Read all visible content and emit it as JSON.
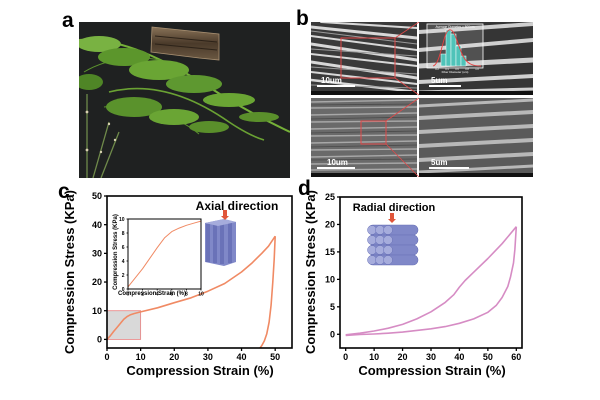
{
  "panels": {
    "a": {
      "label": "a"
    },
    "b": {
      "label": "b",
      "scale_bars": [
        "10um",
        "5um",
        "10um",
        "5um"
      ],
      "histogram_inset": {
        "title": "Average Diameter = 500nm",
        "xlabel": "Fiber Diameter (um)",
        "ylabel": "Distribution",
        "xticks": [
          "0.2",
          "0.4",
          "0.6",
          "0.8",
          "1.0"
        ]
      }
    },
    "c": {
      "label": "c",
      "annotation": "Axial direction"
    },
    "d": {
      "label": "d",
      "annotation": "Radial direction"
    }
  },
  "colors": {
    "axial_curve": "#f08a64",
    "radial_curve": "#d68cc4",
    "zoom_box": "#e88080",
    "fiber_block": "#7f86c8",
    "arrow": "#e0553a"
  },
  "chart_data": [
    {
      "id": "c",
      "type": "line",
      "title": "",
      "xlabel": "Compression Strain (%)",
      "ylabel": "Compression Stress (KPa)",
      "xlim": [
        0,
        55
      ],
      "ylim": [
        -3,
        50
      ],
      "xticks": [
        0,
        10,
        20,
        30,
        40,
        50
      ],
      "yticks": [
        0,
        10,
        20,
        30,
        40,
        50
      ],
      "series": [
        {
          "name": "loading",
          "x": [
            0,
            1,
            2,
            3,
            4,
            5,
            6,
            7,
            8,
            10,
            15,
            20,
            25,
            30,
            35,
            40,
            43,
            46,
            48,
            50
          ],
          "y": [
            0,
            1.3,
            2.8,
            4.2,
            5.6,
            7.0,
            8.0,
            8.6,
            9.0,
            9.6,
            11,
            12.8,
            14.5,
            16.8,
            19.5,
            23.5,
            26.5,
            30,
            32.5,
            36
          ]
        },
        {
          "name": "unloading",
          "x": [
            50,
            49.7,
            49.3,
            48.8,
            48.2,
            47.5,
            46.8,
            46.0,
            45.5
          ],
          "y": [
            36,
            28,
            20,
            12,
            6,
            2,
            -0.5,
            -2.2,
            -3
          ]
        }
      ],
      "highlight_region": {
        "x": [
          0,
          10
        ],
        "y": [
          0,
          10
        ]
      },
      "inset": {
        "xlabel": "Compression Strain (%)",
        "ylabel": "Compression Stress (KPa)",
        "xlim": [
          0,
          10
        ],
        "ylim": [
          0,
          10
        ],
        "xticks": [
          0,
          2,
          4,
          6,
          8,
          10
        ],
        "yticks": [
          0,
          2,
          4,
          6,
          8,
          10
        ],
        "x": [
          0,
          1,
          2,
          3,
          4,
          5,
          6,
          7,
          8,
          9,
          10
        ],
        "y": [
          0.3,
          1.6,
          2.9,
          4.4,
          5.9,
          7.3,
          8.2,
          8.7,
          9.1,
          9.4,
          9.7
        ]
      }
    },
    {
      "id": "d",
      "type": "line",
      "title": "",
      "xlabel": "Compression Strain (%)",
      "ylabel": "Compression Stress (KPa)",
      "xlim": [
        -2,
        62
      ],
      "ylim": [
        -2.5,
        25
      ],
      "xticks": [
        0,
        10,
        20,
        30,
        40,
        50,
        60
      ],
      "yticks": [
        0,
        5,
        10,
        15,
        20,
        25
      ],
      "series": [
        {
          "name": "loading",
          "x": [
            0,
            5,
            10,
            15,
            20,
            25,
            30,
            35,
            38,
            40,
            42,
            45,
            50,
            55,
            60
          ],
          "y": [
            -0.1,
            0.2,
            0.6,
            1.1,
            1.8,
            2.8,
            4.1,
            5.8,
            7.2,
            8.6,
            9.8,
            11.3,
            13.8,
            16.5,
            19.6
          ]
        },
        {
          "name": "unloading",
          "x": [
            60,
            59.5,
            59,
            58,
            57,
            55,
            53,
            50,
            45,
            40,
            35,
            30,
            25,
            20,
            15,
            10,
            5,
            0
          ],
          "y": [
            19.6,
            15.5,
            13,
            10.5,
            8.7,
            6.7,
            5.3,
            4.0,
            2.8,
            2.0,
            1.4,
            1.0,
            0.7,
            0.4,
            0.2,
            0.05,
            -0.05,
            -0.2
          ]
        }
      ]
    }
  ]
}
